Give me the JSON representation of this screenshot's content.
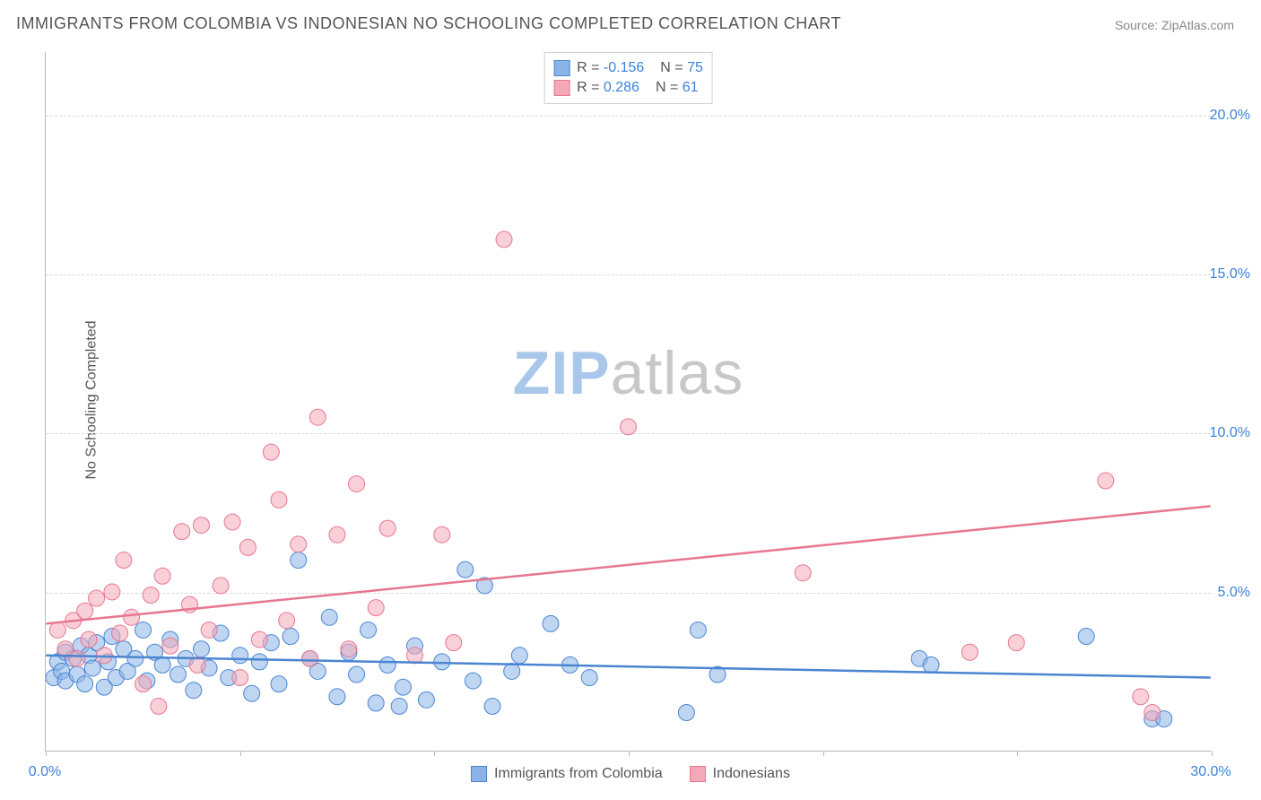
{
  "title": "IMMIGRANTS FROM COLOMBIA VS INDONESIAN NO SCHOOLING COMPLETED CORRELATION CHART",
  "source_label": "Source:",
  "source_value": "ZipAtlas.com",
  "y_axis_label": "No Schooling Completed",
  "watermark_bold": "ZIP",
  "watermark_light": "atlas",
  "watermark_color_bold": "#a9c7ea",
  "watermark_color_light": "#c8c8c8",
  "chart": {
    "type": "scatter",
    "xlim": [
      0,
      30
    ],
    "ylim": [
      0,
      22
    ],
    "x_ticks": [
      0,
      5,
      10,
      15,
      20,
      25,
      30
    ],
    "x_tick_labels": [
      "0.0%",
      "",
      "",
      "",
      "",
      "",
      "30.0%"
    ],
    "y_ticks": [
      5,
      10,
      15,
      20
    ],
    "y_tick_labels": [
      "5.0%",
      "10.0%",
      "15.0%",
      "20.0%"
    ],
    "grid_y_positions": [
      5,
      10,
      15,
      20
    ],
    "background_color": "#ffffff",
    "grid_color": "#d8d8d8",
    "axis_color": "#b8b8b8",
    "marker_radius": 9,
    "marker_opacity": 0.55,
    "line_width": 2.5,
    "series": [
      {
        "name": "Immigrants from Colombia",
        "color_fill": "#8ab4e8",
        "color_stroke": "#4a85d1",
        "r_value": "-0.156",
        "n_value": "75",
        "trend_line": {
          "x1": 0,
          "y1": 3.0,
          "x2": 30,
          "y2": 2.3
        },
        "points": [
          [
            0.2,
            2.3
          ],
          [
            0.3,
            2.8
          ],
          [
            0.4,
            2.5
          ],
          [
            0.5,
            3.1
          ],
          [
            0.5,
            2.2
          ],
          [
            0.7,
            2.9
          ],
          [
            0.8,
            2.4
          ],
          [
            0.9,
            3.3
          ],
          [
            1.0,
            2.1
          ],
          [
            1.1,
            3.0
          ],
          [
            1.2,
            2.6
          ],
          [
            1.3,
            3.4
          ],
          [
            1.5,
            2.0
          ],
          [
            1.6,
            2.8
          ],
          [
            1.7,
            3.6
          ],
          [
            1.8,
            2.3
          ],
          [
            2.0,
            3.2
          ],
          [
            2.1,
            2.5
          ],
          [
            2.3,
            2.9
          ],
          [
            2.5,
            3.8
          ],
          [
            2.6,
            2.2
          ],
          [
            2.8,
            3.1
          ],
          [
            3.0,
            2.7
          ],
          [
            3.2,
            3.5
          ],
          [
            3.4,
            2.4
          ],
          [
            3.6,
            2.9
          ],
          [
            3.8,
            1.9
          ],
          [
            4.0,
            3.2
          ],
          [
            4.2,
            2.6
          ],
          [
            4.5,
            3.7
          ],
          [
            4.7,
            2.3
          ],
          [
            5.0,
            3.0
          ],
          [
            5.3,
            1.8
          ],
          [
            5.5,
            2.8
          ],
          [
            5.8,
            3.4
          ],
          [
            6.0,
            2.1
          ],
          [
            6.3,
            3.6
          ],
          [
            6.5,
            6.0
          ],
          [
            6.8,
            2.9
          ],
          [
            7.0,
            2.5
          ],
          [
            7.3,
            4.2
          ],
          [
            7.5,
            1.7
          ],
          [
            7.8,
            3.1
          ],
          [
            8.0,
            2.4
          ],
          [
            8.3,
            3.8
          ],
          [
            8.5,
            1.5
          ],
          [
            8.8,
            2.7
          ],
          [
            9.1,
            1.4
          ],
          [
            9.2,
            2.0
          ],
          [
            9.5,
            3.3
          ],
          [
            9.8,
            1.6
          ],
          [
            10.2,
            2.8
          ],
          [
            10.8,
            5.7
          ],
          [
            11.0,
            2.2
          ],
          [
            11.3,
            5.2
          ],
          [
            11.5,
            1.4
          ],
          [
            12.0,
            2.5
          ],
          [
            12.2,
            3.0
          ],
          [
            13.0,
            4.0
          ],
          [
            13.5,
            2.7
          ],
          [
            14.0,
            2.3
          ],
          [
            16.5,
            1.2
          ],
          [
            16.8,
            3.8
          ],
          [
            17.3,
            2.4
          ],
          [
            22.5,
            2.9
          ],
          [
            22.8,
            2.7
          ],
          [
            26.8,
            3.6
          ],
          [
            28.5,
            1.0
          ],
          [
            28.8,
            1.0
          ]
        ]
      },
      {
        "name": "Indonesians",
        "color_fill": "#f4a9b8",
        "color_stroke": "#e77690",
        "r_value": "0.286",
        "n_value": "61",
        "trend_line": {
          "x1": 0,
          "y1": 4.0,
          "x2": 30,
          "y2": 7.7
        },
        "points": [
          [
            0.3,
            3.8
          ],
          [
            0.5,
            3.2
          ],
          [
            0.7,
            4.1
          ],
          [
            0.8,
            2.9
          ],
          [
            1.0,
            4.4
          ],
          [
            1.1,
            3.5
          ],
          [
            1.3,
            4.8
          ],
          [
            1.5,
            3.0
          ],
          [
            1.7,
            5.0
          ],
          [
            1.9,
            3.7
          ],
          [
            2.0,
            6.0
          ],
          [
            2.2,
            4.2
          ],
          [
            2.5,
            2.1
          ],
          [
            2.7,
            4.9
          ],
          [
            2.9,
            1.4
          ],
          [
            3.0,
            5.5
          ],
          [
            3.2,
            3.3
          ],
          [
            3.5,
            6.9
          ],
          [
            3.7,
            4.6
          ],
          [
            3.9,
            2.7
          ],
          [
            4.0,
            7.1
          ],
          [
            4.2,
            3.8
          ],
          [
            4.5,
            5.2
          ],
          [
            4.8,
            7.2
          ],
          [
            5.0,
            2.3
          ],
          [
            5.2,
            6.4
          ],
          [
            5.5,
            3.5
          ],
          [
            5.8,
            9.4
          ],
          [
            6.0,
            7.9
          ],
          [
            6.2,
            4.1
          ],
          [
            6.5,
            6.5
          ],
          [
            6.8,
            2.9
          ],
          [
            7.0,
            10.5
          ],
          [
            7.5,
            6.8
          ],
          [
            7.8,
            3.2
          ],
          [
            8.0,
            8.4
          ],
          [
            8.5,
            4.5
          ],
          [
            8.8,
            7.0
          ],
          [
            9.5,
            3.0
          ],
          [
            10.2,
            6.8
          ],
          [
            10.5,
            3.4
          ],
          [
            11.8,
            16.1
          ],
          [
            15.0,
            10.2
          ],
          [
            19.5,
            5.6
          ],
          [
            23.8,
            3.1
          ],
          [
            25.0,
            3.4
          ],
          [
            27.3,
            8.5
          ],
          [
            28.2,
            1.7
          ],
          [
            28.5,
            1.2
          ]
        ]
      }
    ]
  },
  "legend_labels": {
    "r_prefix": "R =",
    "n_prefix": "N ="
  },
  "colors": {
    "text_main": "#555555",
    "text_blue": "#3b82d6"
  }
}
